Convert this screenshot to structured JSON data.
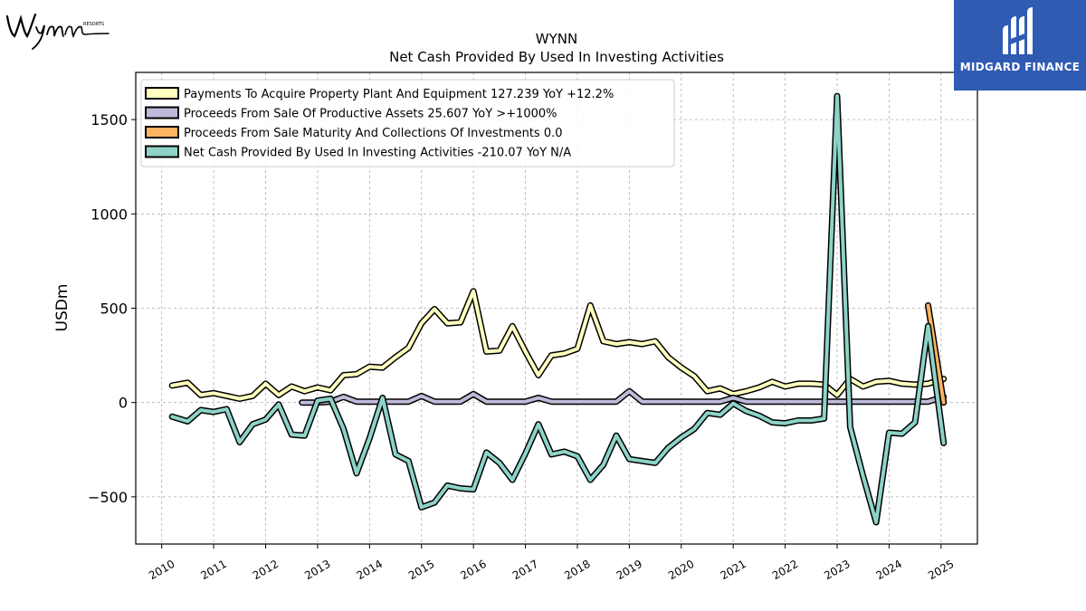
{
  "brand": {
    "name": "Wynn",
    "sub": "RESORTS"
  },
  "badge": {
    "text": "MIDGARD FINANCE"
  },
  "chart_data": {
    "type": "line",
    "title": "WYNN",
    "subtitle": "Net Cash Provided By Used In Investing Activities",
    "ylabel": "USDm",
    "xlim": [
      2009.5,
      2025.7
    ],
    "ylim": [
      -750,
      1750
    ],
    "xticks": [
      2010,
      2011,
      2012,
      2013,
      2014,
      2015,
      2016,
      2017,
      2018,
      2019,
      2020,
      2021,
      2022,
      2023,
      2024,
      2025
    ],
    "yticks": [
      -500,
      0,
      500,
      1000,
      1500
    ],
    "ytick_labels": [
      "−500",
      "0",
      "500",
      "1000",
      "1500"
    ],
    "grid": true,
    "legend_position": "top-left",
    "series": [
      {
        "name": "Payments To Acquire Property Plant And Equipment",
        "legend_label": "Payments To Acquire Property Plant And Equipment  127.239 YoY +12.2%",
        "color": "#ffffbf",
        "x": [
          2010.2,
          2010.5,
          2010.75,
          2011.0,
          2011.25,
          2011.5,
          2011.75,
          2012.0,
          2012.25,
          2012.5,
          2012.75,
          2013.0,
          2013.25,
          2013.5,
          2013.75,
          2014.0,
          2014.25,
          2014.5,
          2014.75,
          2015.0,
          2015.25,
          2015.5,
          2015.75,
          2016.0,
          2016.25,
          2016.5,
          2016.75,
          2017.0,
          2017.25,
          2017.5,
          2017.75,
          2018.0,
          2018.25,
          2018.5,
          2018.75,
          2019.0,
          2019.25,
          2019.5,
          2019.75,
          2020.0,
          2020.25,
          2020.5,
          2020.75,
          2021.0,
          2021.25,
          2021.5,
          2021.75,
          2022.0,
          2022.25,
          2022.5,
          2022.75,
          2023.0,
          2023.25,
          2023.5,
          2023.75,
          2024.0,
          2024.25,
          2024.5,
          2024.75,
          2025.05
        ],
        "y": [
          90,
          105,
          40,
          50,
          35,
          20,
          35,
          100,
          40,
          85,
          60,
          80,
          65,
          145,
          150,
          190,
          185,
          240,
          290,
          420,
          495,
          420,
          425,
          590,
          270,
          275,
          405,
          270,
          145,
          250,
          260,
          285,
          515,
          325,
          310,
          320,
          310,
          325,
          240,
          185,
          140,
          60,
          75,
          45,
          60,
          80,
          110,
          85,
          100,
          100,
          95,
          40,
          125,
          85,
          110,
          115,
          100,
          95,
          100,
          125
        ]
      },
      {
        "name": "Proceeds From Sale Of Productive Assets",
        "legend_label": "Proceeds From Sale Of Productive Assets  25.607 YoY >+1000%",
        "color": "#bebada",
        "x": [
          2012.7,
          2013.0,
          2013.25,
          2013.5,
          2013.75,
          2014.0,
          2014.25,
          2014.5,
          2014.75,
          2015.0,
          2015.25,
          2015.5,
          2015.75,
          2016.0,
          2016.25,
          2016.5,
          2016.75,
          2017.0,
          2017.25,
          2017.5,
          2017.75,
          2018.0,
          2018.25,
          2018.5,
          2018.75,
          2019.0,
          2019.25,
          2019.5,
          2019.75,
          2020.0,
          2020.25,
          2020.5,
          2020.75,
          2021.0,
          2021.25,
          2021.5,
          2021.75,
          2022.0,
          2022.25,
          2022.5,
          2022.75,
          2023.0,
          2023.25,
          2023.5,
          2023.75,
          2024.0,
          2024.25,
          2024.5,
          2024.75,
          2025.05
        ],
        "y": [
          0,
          0,
          5,
          30,
          5,
          5,
          5,
          5,
          5,
          35,
          5,
          5,
          5,
          45,
          5,
          5,
          5,
          5,
          25,
          5,
          5,
          5,
          5,
          5,
          5,
          60,
          5,
          5,
          5,
          5,
          5,
          5,
          5,
          25,
          5,
          5,
          5,
          5,
          5,
          5,
          5,
          5,
          5,
          5,
          5,
          5,
          5,
          5,
          5,
          30
        ]
      },
      {
        "name": "Proceeds From Sale Maturity And Collections Of Investments",
        "legend_label": "Proceeds From Sale Maturity And Collections Of Investments  0.0",
        "color": "#fdb462",
        "x": [
          2024.75,
          2025.05
        ],
        "y": [
          515,
          0
        ]
      },
      {
        "name": "Net Cash Provided By Used In Investing Activities",
        "legend_label": "Net Cash Provided By Used In Investing Activities  -210.07 YoY N/A",
        "color": "#8dd3c7",
        "x": [
          2010.2,
          2010.5,
          2010.75,
          2011.0,
          2011.25,
          2011.5,
          2011.75,
          2012.0,
          2012.25,
          2012.5,
          2012.75,
          2013.0,
          2013.25,
          2013.5,
          2013.75,
          2014.0,
          2014.25,
          2014.5,
          2014.75,
          2015.0,
          2015.25,
          2015.5,
          2015.75,
          2016.0,
          2016.25,
          2016.5,
          2016.75,
          2017.0,
          2017.25,
          2017.5,
          2017.75,
          2018.0,
          2018.25,
          2018.5,
          2018.75,
          2019.0,
          2019.25,
          2019.5,
          2019.75,
          2020.0,
          2020.25,
          2020.5,
          2020.75,
          2021.0,
          2021.25,
          2021.5,
          2021.75,
          2022.0,
          2022.25,
          2022.5,
          2022.75,
          2023.0,
          2023.25,
          2023.5,
          2023.75,
          2024.0,
          2024.25,
          2024.5,
          2024.75,
          2025.05
        ],
        "y": [
          -75,
          -100,
          -40,
          -50,
          -35,
          -210,
          -115,
          -90,
          -10,
          -170,
          -175,
          10,
          20,
          -140,
          -375,
          -190,
          25,
          -275,
          -310,
          -555,
          -530,
          -440,
          -455,
          -460,
          -265,
          -320,
          -410,
          -270,
          -115,
          -275,
          -260,
          -285,
          -410,
          -330,
          -175,
          -300,
          -310,
          -320,
          -240,
          -185,
          -140,
          -55,
          -65,
          -5,
          -45,
          -70,
          -105,
          -110,
          -95,
          -95,
          -85,
          1625,
          -130,
          -390,
          -635,
          -160,
          -165,
          -105,
          405,
          -215
        ]
      }
    ]
  }
}
